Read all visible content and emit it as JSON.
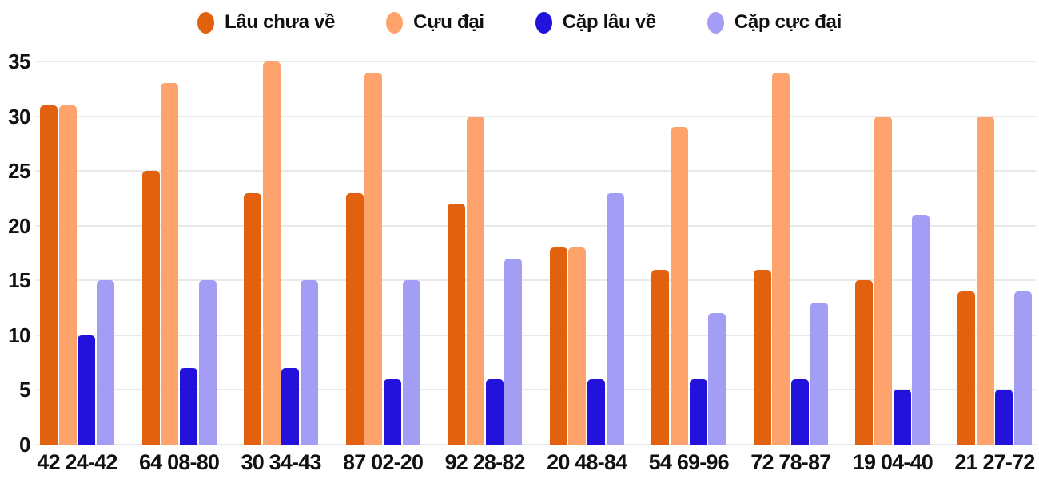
{
  "colors": {
    "background": "#FFFFFF",
    "grid": "#E9E9E9",
    "text": "#111111"
  },
  "chart_data": {
    "type": "bar",
    "title": "",
    "xlabel": "",
    "ylabel": "",
    "categories": [
      "42 24-42",
      "64 08-80",
      "30 34-43",
      "87 02-20",
      "92 28-82",
      "20 48-84",
      "54 69-96",
      "72 78-87",
      "19 04-40",
      "21 27-72"
    ],
    "series": [
      {
        "name": "Lâu chưa về",
        "color": "#E2610E",
        "values": [
          31,
          25,
          23,
          23,
          22,
          18,
          16,
          16,
          15,
          14
        ]
      },
      {
        "name": "Cựu đại",
        "color": "#FDA36B",
        "values": [
          31,
          33,
          35,
          34,
          30,
          18,
          29,
          34,
          30,
          30
        ]
      },
      {
        "name": "Cặp lâu về",
        "color": "#2212DC",
        "values": [
          10,
          7,
          7,
          6,
          6,
          6,
          6,
          6,
          5,
          5
        ]
      },
      {
        "name": "Cặp cực đại",
        "color": "#A49DF5",
        "values": [
          15,
          15,
          15,
          15,
          17,
          23,
          12,
          13,
          21,
          14
        ]
      }
    ],
    "ylim": [
      0,
      35
    ],
    "yticks": [
      0,
      5,
      10,
      15,
      20,
      25,
      30,
      35
    ],
    "grid": true,
    "legend_position": "top"
  }
}
